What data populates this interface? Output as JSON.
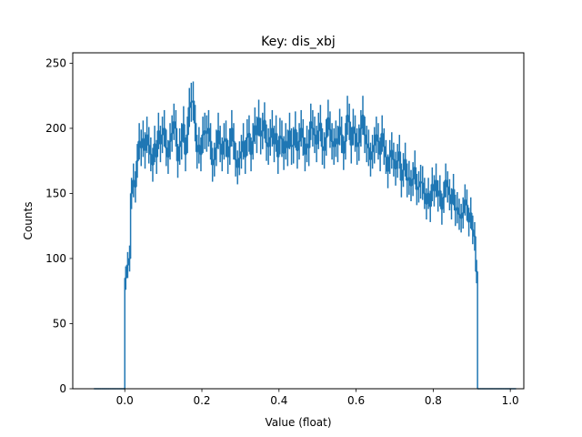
{
  "chart_data": {
    "type": "histogram",
    "title": "Key: dis_xbj",
    "xlabel": "Value (float)",
    "ylabel": "Counts",
    "xlim": [
      -0.135,
      1.035
    ],
    "ylim": [
      0,
      258
    ],
    "xticks": [
      "0.0",
      "0.2",
      "0.4",
      "0.6",
      "0.8",
      "1.0"
    ],
    "xtick_values": [
      0.0,
      0.2,
      0.4,
      0.6,
      0.8,
      1.0
    ],
    "yticks": [
      "0",
      "50",
      "100",
      "150",
      "200",
      "250"
    ],
    "ytick_values": [
      0,
      50,
      100,
      150,
      200,
      250
    ],
    "line_color": "#1f77b4",
    "bin_width": 0.005,
    "bins_start": -0.08,
    "counts": [
      0,
      0,
      0,
      0,
      0,
      0,
      0,
      0,
      0,
      0,
      0,
      0,
      0,
      0,
      0,
      0,
      85,
      95,
      100,
      150,
      160,
      155,
      175,
      190,
      185,
      192,
      183,
      195,
      187,
      180,
      172,
      188,
      178,
      198,
      188,
      195,
      200,
      185,
      178,
      190,
      196,
      205,
      200,
      175,
      186,
      190,
      203,
      180,
      195,
      216,
      220,
      221,
      204,
      182,
      187,
      180,
      195,
      198,
      196,
      200,
      190,
      172,
      176,
      185,
      198,
      188,
      180,
      190,
      192,
      178,
      186,
      200,
      190,
      176,
      170,
      177,
      182,
      190,
      178,
      193,
      196,
      180,
      190,
      202,
      195,
      208,
      194,
      198,
      206,
      189,
      186,
      193,
      200,
      188,
      196,
      178,
      194,
      192,
      181,
      190,
      185,
      198,
      186,
      187,
      199,
      183,
      190,
      200,
      193,
      180,
      188,
      185,
      205,
      200,
      195,
      188,
      198,
      204,
      186,
      183,
      193,
      208,
      199,
      190,
      186,
      192,
      188,
      201,
      195,
      181,
      190,
      210,
      205,
      187,
      201,
      196,
      186,
      189,
      200,
      210,
      195,
      188,
      185,
      176,
      182,
      187,
      195,
      190,
      180,
      196,
      186,
      178,
      167,
      178,
      183,
      176,
      169,
      175,
      182,
      160,
      168,
      176,
      160,
      162,
      156,
      161,
      170,
      153,
      155,
      159,
      158,
      150,
      142,
      150,
      140,
      157,
      152,
      160,
      148,
      152,
      138,
      147,
      160,
      155,
      149,
      142,
      153,
      137,
      139,
      134,
      131,
      135,
      145,
      141,
      128,
      135,
      122,
      117,
      90,
      0,
      0,
      0,
      0,
      0,
      0,
      0,
      0,
      0,
      0,
      0,
      0,
      0,
      0,
      0,
      0,
      0,
      0,
      0,
      0
    ],
    "errors": [
      0,
      0,
      0,
      0,
      0,
      0,
      0,
      0,
      0,
      0,
      0,
      0,
      0,
      0,
      0,
      0,
      9,
      10,
      10,
      12,
      13,
      12,
      13,
      14,
      14,
      14,
      14,
      14,
      14,
      13,
      13,
      14,
      13,
      14,
      14,
      14,
      14,
      14,
      13,
      14,
      14,
      14,
      14,
      13,
      14,
      14,
      14,
      13,
      14,
      15,
      15,
      15,
      14,
      13,
      14,
      13,
      14,
      14,
      14,
      14,
      14,
      13,
      13,
      14,
      14,
      14,
      13,
      14,
      14,
      13,
      14,
      14,
      14,
      13,
      13,
      13,
      13,
      14,
      13,
      14,
      14,
      13,
      14,
      14,
      14,
      14,
      14,
      14,
      14,
      14,
      14,
      14,
      14,
      14,
      14,
      13,
      14,
      14,
      13,
      14,
      14,
      14,
      14,
      14,
      14,
      14,
      14,
      14,
      14,
      13,
      14,
      14,
      14,
      14,
      14,
      14,
      14,
      14,
      14,
      14,
      14,
      14,
      14,
      14,
      14,
      14,
      14,
      14,
      14,
      13,
      14,
      15,
      14,
      14,
      14,
      14,
      14,
      14,
      14,
      15,
      14,
      14,
      14,
      13,
      13,
      14,
      14,
      14,
      13,
      14,
      14,
      13,
      13,
      13,
      14,
      13,
      13,
      13,
      13,
      13,
      13,
      13,
      13,
      13,
      12,
      13,
      13,
      12,
      12,
      13,
      13,
      12,
      12,
      12,
      12,
      13,
      12,
      13,
      12,
      12,
      12,
      12,
      13,
      12,
      12,
      12,
      12,
      12,
      12,
      12,
      11,
      12,
      12,
      12,
      11,
      12,
      11,
      11,
      9,
      0,
      0,
      0,
      0,
      0,
      0,
      0,
      0,
      0,
      0,
      0,
      0,
      0,
      0,
      0,
      0,
      0,
      0,
      0,
      0
    ]
  }
}
